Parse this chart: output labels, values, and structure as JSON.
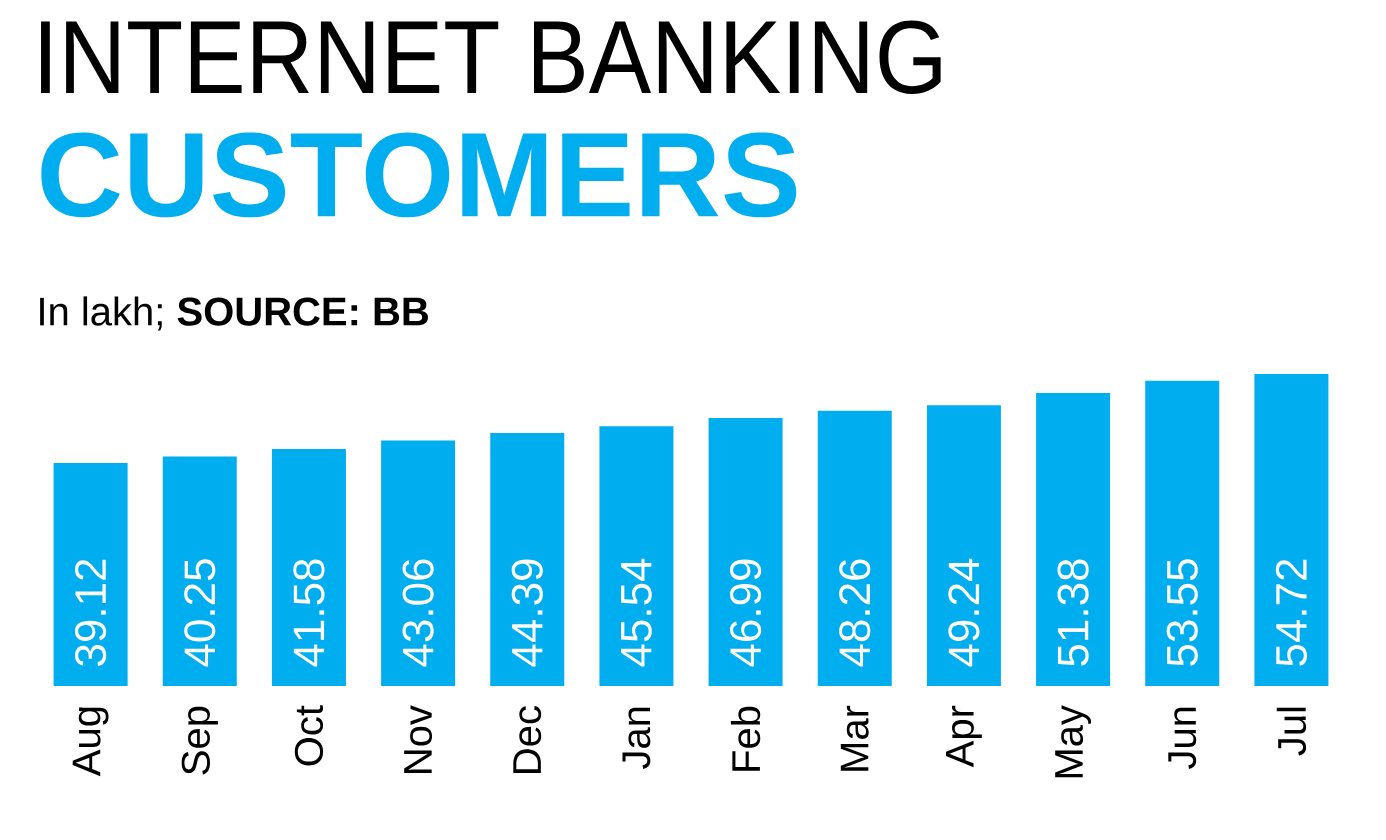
{
  "chart_data": {
    "type": "bar",
    "title": "INTERNET BANKING",
    "subtitle": "CUSTOMERS",
    "annotations": [
      "In lakh; **SOURCE: BB**"
    ],
    "categories": [
      "Aug",
      "Sep",
      "Oct",
      "Nov",
      "Dec",
      "Jan",
      "Feb",
      "Mar",
      "Apr",
      "May",
      "Jun",
      "Jul"
    ],
    "values": [
      39.12,
      40.25,
      41.58,
      43.06,
      44.39,
      45.54,
      46.99,
      48.26,
      49.24,
      51.38,
      53.55,
      54.72
    ],
    "color": "#00aeef",
    "data_labels": true
  }
}
